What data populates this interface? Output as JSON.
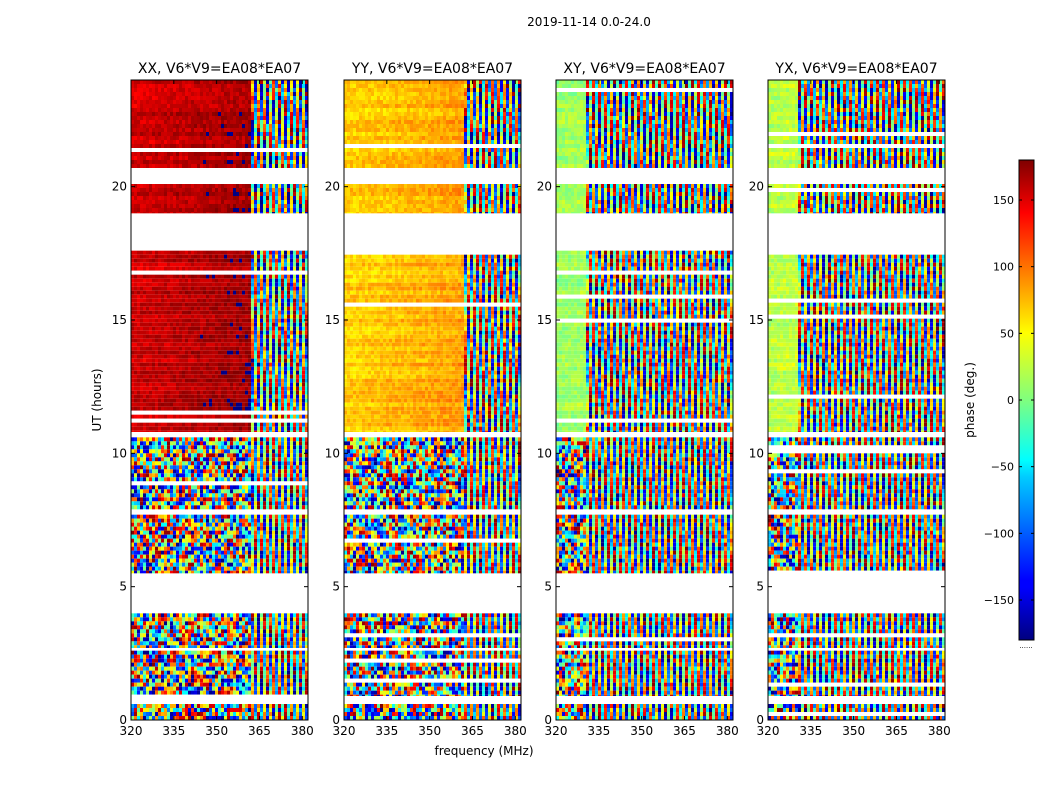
{
  "chart_data": {
    "type": "heatmap",
    "title": "2019-11-14 0.0-24.0",
    "xlabel": "frequency (MHz)",
    "ylabel": "UT (hours)",
    "xlim": [
      320,
      382
    ],
    "ylim": [
      0,
      24
    ],
    "x_ticks": [
      320,
      335,
      350,
      365,
      380
    ],
    "y_ticks": [
      0,
      5,
      10,
      15,
      20
    ],
    "colorbar": {
      "label": "phase (deg.)",
      "range": [
        -180,
        180
      ],
      "ticks": [
        150,
        100,
        50,
        0,
        -50,
        -100,
        -150
      ],
      "tick_labels": [
        "150",
        "100",
        "50",
        "0",
        "−50",
        "−100",
        "−150"
      ],
      "colormap": "jet",
      "extra_label": "......"
    },
    "time_blocks_hours": [
      [
        0.0,
        0.6
      ],
      [
        0.9,
        2.6
      ],
      [
        2.7,
        4.0
      ],
      [
        5.5,
        7.7
      ],
      [
        7.9,
        10.6
      ],
      [
        10.8,
        17.6
      ],
      [
        19.0,
        20.1
      ],
      [
        20.7,
        24.0
      ]
    ],
    "panels": [
      {
        "title": "XX, V6*V9=EA08*EA07",
        "smooth_until_mhz": 361,
        "base_phase_deg": 150
      },
      {
        "title": "YY, V6*V9=EA08*EA07",
        "smooth_until_mhz": 361,
        "base_phase_deg": 60
      },
      {
        "title": "XY, V6*V9=EA08*EA07",
        "smooth_until_mhz": 330,
        "base_phase_deg": 10
      },
      {
        "title": "YX, V6*V9=EA08*EA07",
        "smooth_until_mhz": 330,
        "base_phase_deg": 20
      }
    ]
  }
}
